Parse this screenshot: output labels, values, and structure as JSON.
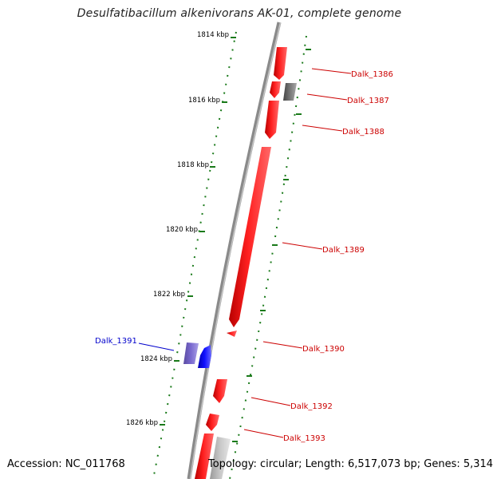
{
  "title": "Desulfatibacillum alkenivorans AK-01, complete genome",
  "footer": {
    "accession": "Accession: NC_011768",
    "topology": "Topology: circular; Length: 6,517,073 bp; Genes: 5,314"
  },
  "ticks": [
    "1814 kbp",
    "1816 kbp",
    "1818 kbp",
    "1820 kbp",
    "1822 kbp",
    "1824 kbp",
    "1826 kbp"
  ],
  "genes": [
    "Dalk_1386",
    "Dalk_1387",
    "Dalk_1388",
    "Dalk_1389",
    "Dalk_1390",
    "Dalk_1391",
    "Dalk_1392",
    "Dalk_1393"
  ],
  "colors": {
    "forward_cds": "#ff0000",
    "reverse_cds": "#0000ff",
    "other_feature": "#555555",
    "backbone": "#888888",
    "tick_mark": "#1a7a1a",
    "label_red": "#cc0000",
    "label_blue": "#0000cc"
  }
}
